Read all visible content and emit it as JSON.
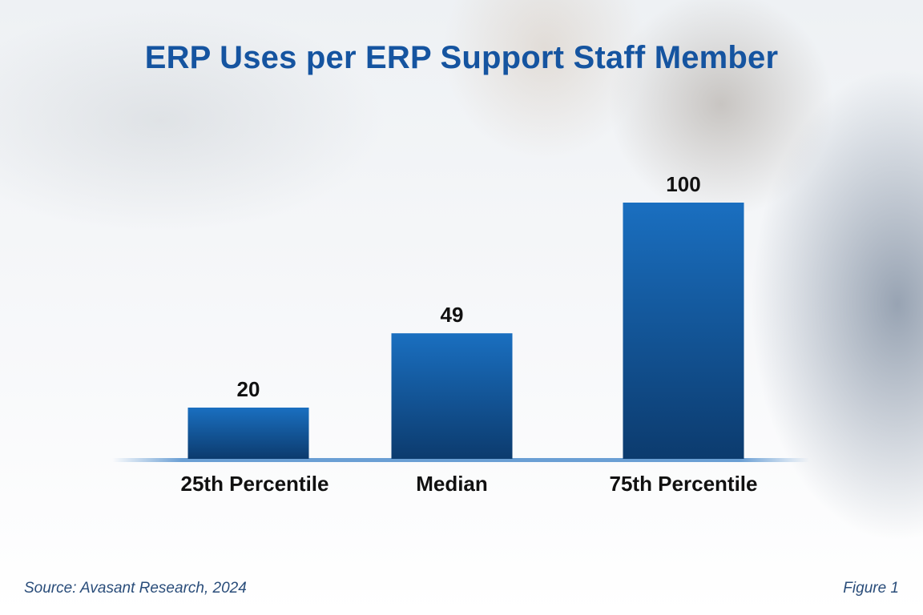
{
  "chart_data": {
    "type": "bar",
    "title": "ERP Uses per ERP Support Staff Member",
    "categories": [
      "25th Percentile",
      "Median",
      "75th Percentile"
    ],
    "values": [
      20,
      49,
      100
    ],
    "data_labels": [
      "20",
      "49",
      "100"
    ],
    "ylim": [
      0,
      100
    ],
    "grid": false,
    "legend": "none",
    "colors": {
      "bar_top": "#1a6fc0",
      "bar_bottom": "#0c3b6e",
      "title": "#1554a0",
      "baseline": "#6a9fd4"
    }
  },
  "footer": {
    "source": "Source: Avasant Research, 2024",
    "figure": "Figure 1"
  }
}
